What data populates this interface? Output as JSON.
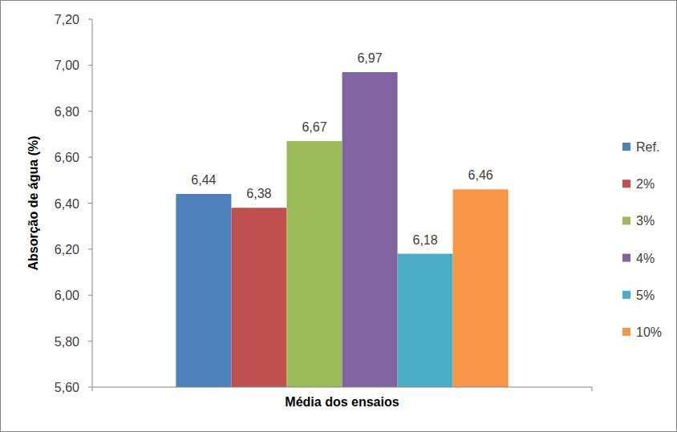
{
  "chart_data": {
    "type": "bar",
    "x_label": "Média dos ensaios",
    "y_label": "Absorção de água (%)",
    "categories": [
      "Média dos ensaios"
    ],
    "series": [
      {
        "name": "Ref.",
        "color": "#4f81bd",
        "values": [
          6.44
        ],
        "value_labels": [
          "6,44"
        ]
      },
      {
        "name": "2%",
        "color": "#c0504d",
        "values": [
          6.38
        ],
        "value_labels": [
          "6,38"
        ]
      },
      {
        "name": "3%",
        "color": "#9bbb59",
        "values": [
          6.67
        ],
        "value_labels": [
          "6,67"
        ]
      },
      {
        "name": "4%",
        "color": "#8064a2",
        "values": [
          6.97
        ],
        "value_labels": [
          "6,97"
        ]
      },
      {
        "name": "5%",
        "color": "#4bacc6",
        "values": [
          6.18
        ],
        "value_labels": [
          "6,18"
        ]
      },
      {
        "name": "10%",
        "color": "#f79646",
        "values": [
          6.46
        ],
        "value_labels": [
          "6,46"
        ]
      }
    ],
    "ylim": [
      5.6,
      7.2
    ],
    "yticks": [
      {
        "value": 5.6,
        "label": "5,60"
      },
      {
        "value": 5.8,
        "label": "5,80"
      },
      {
        "value": 6.0,
        "label": "6,00"
      },
      {
        "value": 6.2,
        "label": "6,20"
      },
      {
        "value": 6.4,
        "label": "6,40"
      },
      {
        "value": 6.6,
        "label": "6,60"
      },
      {
        "value": 6.8,
        "label": "6,80"
      },
      {
        "value": 7.0,
        "label": "7,00"
      },
      {
        "value": 7.2,
        "label": "7,20"
      }
    ],
    "grid": false,
    "legend": "right",
    "data_labels": true
  }
}
